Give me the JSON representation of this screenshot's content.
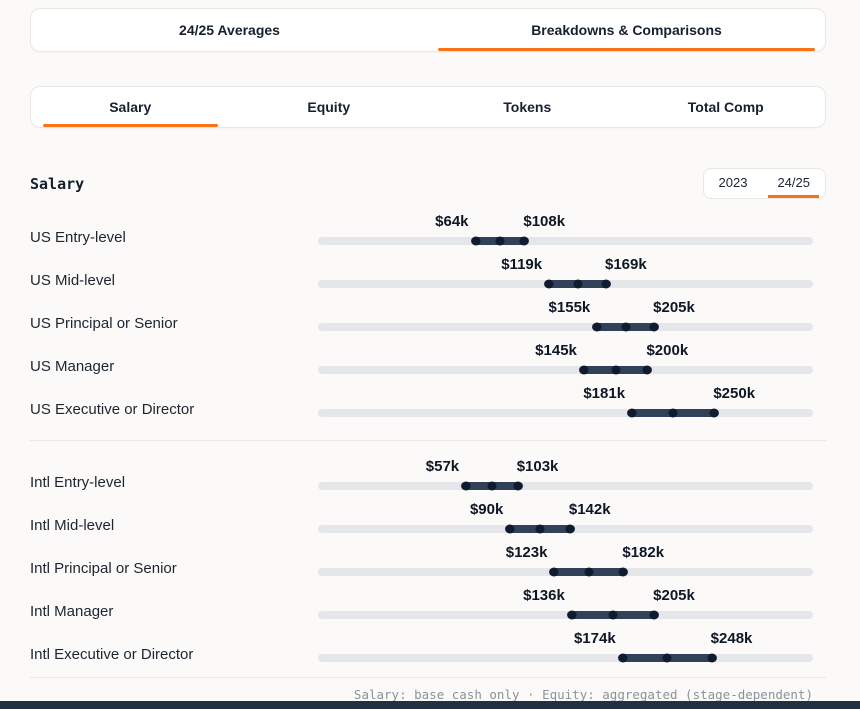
{
  "colors": {
    "accent": "#f97316",
    "bar": "#32415a",
    "dot": "#101b2d",
    "track": "#e4e6e9",
    "background": "#fbfaf8",
    "bottom_bar": "#223044"
  },
  "top_tabs": {
    "items": [
      {
        "label": "24/25 Averages",
        "active": false
      },
      {
        "label": "Breakdowns & Comparisons",
        "active": true
      }
    ]
  },
  "sub_tabs": {
    "items": [
      {
        "label": "Salary",
        "active": true
      },
      {
        "label": "Equity",
        "active": false
      },
      {
        "label": "Tokens",
        "active": false
      },
      {
        "label": "Total Comp",
        "active": false
      }
    ]
  },
  "section": {
    "title": "Salary"
  },
  "year_toggle": {
    "items": [
      {
        "label": "2023",
        "active": false
      },
      {
        "label": "24/25",
        "active": true
      }
    ]
  },
  "chart_data": {
    "type": "bar",
    "subtype": "range",
    "orientation": "horizontal",
    "title": "Salary",
    "period": "24/25",
    "unit": "USD thousands (k)",
    "value_axis": {
      "layout_min": -50,
      "layout_max": 320
    },
    "legend": "none",
    "groups": [
      {
        "name": "US",
        "rows": [
          {
            "label": "US Entry-level",
            "min": 64,
            "max": 108,
            "min_label": "$64k",
            "max_label": "$108k"
          },
          {
            "label": "US Mid-level",
            "min": 119,
            "max": 169,
            "min_label": "$119k",
            "max_label": "$169k"
          },
          {
            "label": "US Principal or Senior",
            "min": 155,
            "max": 205,
            "min_label": "$155k",
            "max_label": "$205k"
          },
          {
            "label": "US Manager",
            "min": 145,
            "max": 200,
            "min_label": "$145k",
            "max_label": "$200k"
          },
          {
            "label": "US Executive or Director",
            "min": 181,
            "max": 250,
            "min_label": "$181k",
            "max_label": "$250k"
          }
        ]
      },
      {
        "name": "Intl",
        "rows": [
          {
            "label": "Intl Entry-level",
            "min": 57,
            "max": 103,
            "min_label": "$57k",
            "max_label": "$103k"
          },
          {
            "label": "Intl Mid-level",
            "min": 90,
            "max": 142,
            "min_label": "$90k",
            "max_label": "$142k"
          },
          {
            "label": "Intl Principal or Senior",
            "min": 123,
            "max": 182,
            "min_label": "$123k",
            "max_label": "$182k"
          },
          {
            "label": "Intl Manager",
            "min": 136,
            "max": 205,
            "min_label": "$136k",
            "max_label": "$205k"
          },
          {
            "label": "Intl Executive or Director",
            "min": 174,
            "max": 248,
            "min_label": "$174k",
            "max_label": "$248k"
          }
        ]
      }
    ]
  },
  "footer": {
    "note": "Salary: base cash only · Equity: aggregated (stage-dependent)"
  }
}
